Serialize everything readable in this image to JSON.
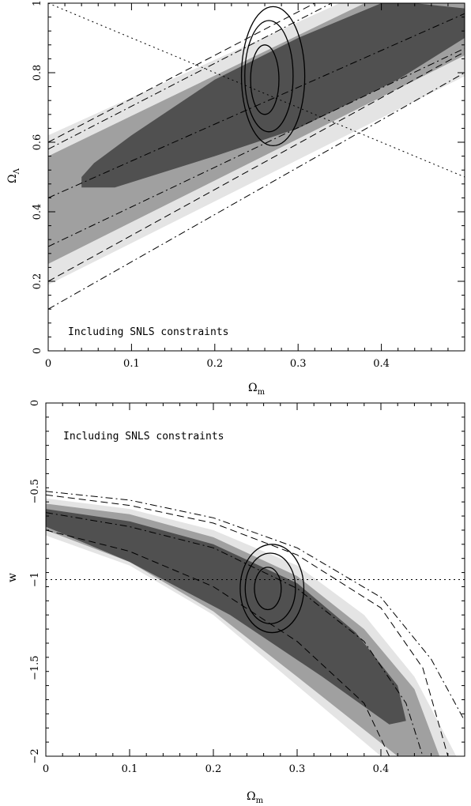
{
  "chart_data": [
    {
      "type": "contour",
      "annotation": "Including SNLS constraints",
      "xlabel": {
        "symbol": "Ω",
        "sub": "m"
      },
      "ylabel": {
        "symbol": "Ω",
        "sub": "Λ"
      },
      "xlim": [
        0,
        0.5
      ],
      "ylim": [
        0,
        1
      ],
      "xticks": [
        0,
        0.1,
        0.2,
        0.3,
        0.4
      ],
      "xtick_labels": [
        "0",
        "0.1",
        "0.2",
        "0.3",
        "0.4"
      ],
      "yticks": [
        0,
        0.2,
        0.4,
        0.6,
        0.8,
        1
      ],
      "ytick_labels": [
        "0",
        "0.2",
        "0.4",
        "0.6",
        "0.8",
        "1"
      ],
      "filled_regions": [
        {
          "level": "outer",
          "color": "#e4e4e4",
          "polygon": [
            [
              0,
              0.19
            ],
            [
              0.5,
              0.79
            ],
            [
              0.5,
              1.0
            ],
            [
              0.35,
              1.0
            ],
            [
              0,
              0.62
            ]
          ]
        },
        {
          "level": "middle",
          "color": "#a0a0a0",
          "polygon": [
            [
              0,
              0.25
            ],
            [
              0.5,
              0.85
            ],
            [
              0.5,
              1.0
            ],
            [
              0.38,
              1.0
            ],
            [
              0,
              0.56
            ]
          ]
        },
        {
          "level": "inner",
          "color": "#505050",
          "polygon": [
            [
              0.04,
              0.47
            ],
            [
              0.08,
              0.47
            ],
            [
              0.2,
              0.56
            ],
            [
              0.3,
              0.64
            ],
            [
              0.42,
              0.78
            ],
            [
              0.5,
              0.9
            ],
            [
              0.5,
              0.985
            ],
            [
              0.44,
              1.0
            ],
            [
              0.4,
              1.0
            ],
            [
              0.3,
              0.9
            ],
            [
              0.2,
              0.78
            ],
            [
              0.1,
              0.62
            ],
            [
              0.055,
              0.54
            ],
            [
              0.04,
              0.5
            ]
          ]
        }
      ],
      "ellipses": [
        {
          "cx": 0.26,
          "cy": 0.78,
          "rx": 0.017,
          "ry": 0.1
        },
        {
          "cx": 0.265,
          "cy": 0.79,
          "rx": 0.029,
          "ry": 0.16
        },
        {
          "cx": 0.27,
          "cy": 0.79,
          "rx": 0.038,
          "ry": 0.2
        }
      ],
      "lines": [
        {
          "style": "dashdot",
          "points": [
            [
              0,
              0.12
            ],
            [
              0.5,
              0.8
            ]
          ]
        },
        {
          "style": "dashdot",
          "points": [
            [
              0,
              0.3
            ],
            [
              0.5,
              0.87
            ]
          ]
        },
        {
          "style": "dashdot",
          "points": [
            [
              0,
              0.44
            ],
            [
              0.5,
              0.97
            ]
          ]
        },
        {
          "style": "dashdot",
          "points": [
            [
              0,
              0.58
            ],
            [
              0.34,
              1.0
            ]
          ]
        },
        {
          "style": "dashed",
          "points": [
            [
              0,
              0.2
            ],
            [
              0.5,
              0.86
            ]
          ]
        },
        {
          "style": "dashed",
          "points": [
            [
              0,
              0.6
            ],
            [
              0.32,
              1.0
            ]
          ]
        },
        {
          "style": "dotted",
          "points": [
            [
              0,
              1.0
            ],
            [
              0.5,
              0.5
            ]
          ]
        }
      ]
    },
    {
      "type": "contour",
      "annotation": "Including SNLS constraints",
      "xlabel": {
        "symbol": "Ω",
        "sub": "m"
      },
      "ylabel": {
        "symbol": "w",
        "sub": ""
      },
      "xlim": [
        0,
        0.5
      ],
      "ylim": [
        -2,
        0
      ],
      "xticks": [
        0,
        0.1,
        0.2,
        0.3,
        0.4
      ],
      "xtick_labels": [
        "0",
        "0.1",
        "0.2",
        "0.3",
        "0.4"
      ],
      "yticks": [
        -2,
        -1.5,
        -1,
        -0.5,
        0
      ],
      "ytick_labels": [
        "−2",
        "−1.5",
        "−1",
        "−0.5",
        "0"
      ],
      "filled_regions": [
        {
          "level": "outer",
          "color": "#e4e4e4",
          "polygon": [
            [
              0,
              -0.54
            ],
            [
              0.1,
              -0.6
            ],
            [
              0.2,
              -0.72
            ],
            [
              0.3,
              -0.92
            ],
            [
              0.38,
              -1.2
            ],
            [
              0.44,
              -1.55
            ],
            [
              0.49,
              -2.0
            ],
            [
              0.4,
              -2.0
            ],
            [
              0.3,
              -1.6
            ],
            [
              0.2,
              -1.2
            ],
            [
              0.1,
              -0.92
            ],
            [
              0,
              -0.75
            ]
          ]
        },
        {
          "level": "middle",
          "color": "#a0a0a0",
          "polygon": [
            [
              0,
              -0.57
            ],
            [
              0.1,
              -0.63
            ],
            [
              0.2,
              -0.76
            ],
            [
              0.3,
              -0.98
            ],
            [
              0.38,
              -1.28
            ],
            [
              0.44,
              -1.62
            ],
            [
              0.47,
              -2.0
            ],
            [
              0.42,
              -2.0
            ],
            [
              0.3,
              -1.55
            ],
            [
              0.2,
              -1.18
            ],
            [
              0.1,
              -0.9
            ],
            [
              0,
              -0.72
            ]
          ]
        },
        {
          "level": "inner",
          "color": "#505050",
          "polygon": [
            [
              0,
              -0.6
            ],
            [
              0.1,
              -0.67
            ],
            [
              0.2,
              -0.8
            ],
            [
              0.3,
              -1.02
            ],
            [
              0.37,
              -1.3
            ],
            [
              0.42,
              -1.6
            ],
            [
              0.43,
              -1.8
            ],
            [
              0.41,
              -1.82
            ],
            [
              0.33,
              -1.55
            ],
            [
              0.22,
              -1.2
            ],
            [
              0.1,
              -0.9
            ],
            [
              0,
              -0.7
            ]
          ]
        }
      ],
      "ellipses": [
        {
          "cx": 0.265,
          "cy": -1.05,
          "rx": 0.016,
          "ry": 0.12
        },
        {
          "cx": 0.268,
          "cy": -1.05,
          "rx": 0.03,
          "ry": 0.2
        },
        {
          "cx": 0.27,
          "cy": -1.05,
          "rx": 0.038,
          "ry": 0.25
        }
      ],
      "lines": [
        {
          "style": "dashdot",
          "points": [
            [
              0,
              -0.5
            ],
            [
              0.1,
              -0.55
            ],
            [
              0.2,
              -0.65
            ],
            [
              0.3,
              -0.82
            ],
            [
              0.4,
              -1.1
            ],
            [
              0.46,
              -1.45
            ],
            [
              0.5,
              -1.8
            ]
          ]
        },
        {
          "style": "dashdot",
          "points": [
            [
              0,
              -0.62
            ],
            [
              0.1,
              -0.7
            ],
            [
              0.2,
              -0.82
            ],
            [
              0.3,
              -1.05
            ],
            [
              0.38,
              -1.35
            ],
            [
              0.43,
              -1.7
            ],
            [
              0.45,
              -2.0
            ]
          ]
        },
        {
          "style": "dashed",
          "points": [
            [
              0,
              -0.52
            ],
            [
              0.1,
              -0.58
            ],
            [
              0.2,
              -0.68
            ],
            [
              0.3,
              -0.86
            ],
            [
              0.4,
              -1.16
            ],
            [
              0.45,
              -1.5
            ],
            [
              0.48,
              -2.0
            ]
          ]
        },
        {
          "style": "dashed",
          "points": [
            [
              0,
              -0.72
            ],
            [
              0.1,
              -0.84
            ],
            [
              0.2,
              -1.04
            ],
            [
              0.3,
              -1.35
            ],
            [
              0.38,
              -1.7
            ],
            [
              0.41,
              -2.0
            ]
          ]
        },
        {
          "style": "dotted",
          "points": [
            [
              0,
              -1.0
            ],
            [
              0.5,
              -1.0
            ]
          ]
        }
      ]
    }
  ]
}
